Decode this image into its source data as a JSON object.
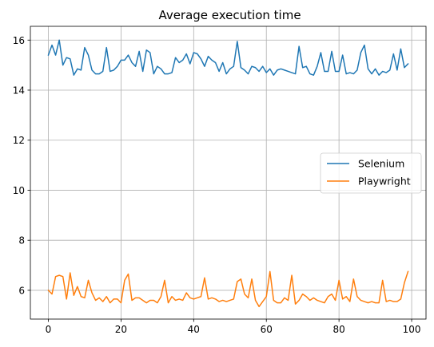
{
  "chart_data": {
    "type": "line",
    "title": "Average execution time",
    "xlabel": "",
    "ylabel": "",
    "xlim": [
      -4.95,
      103.95
    ],
    "ylim": [
      4.85,
      16.55
    ],
    "xticks": [
      0,
      20,
      40,
      60,
      80,
      100
    ],
    "yticks": [
      6,
      8,
      10,
      12,
      14,
      16
    ],
    "grid": true,
    "legend_position": "center-right",
    "x": [
      0,
      1,
      2,
      3,
      4,
      5,
      6,
      7,
      8,
      9,
      10,
      11,
      12,
      13,
      14,
      15,
      16,
      17,
      18,
      19,
      20,
      21,
      22,
      23,
      24,
      25,
      26,
      27,
      28,
      29,
      30,
      31,
      32,
      33,
      34,
      35,
      36,
      37,
      38,
      39,
      40,
      41,
      42,
      43,
      44,
      45,
      46,
      47,
      48,
      49,
      50,
      51,
      52,
      53,
      54,
      55,
      56,
      57,
      58,
      59,
      60,
      61,
      62,
      63,
      64,
      65,
      66,
      67,
      68,
      69,
      70,
      71,
      72,
      73,
      74,
      75,
      76,
      77,
      78,
      79,
      80,
      81,
      82,
      83,
      84,
      85,
      86,
      87,
      88,
      89,
      90,
      91,
      92,
      93,
      94,
      95,
      96,
      97,
      98,
      99
    ],
    "series": [
      {
        "name": "Selenium",
        "color": "#1f77b4",
        "values": [
          15.4,
          15.8,
          15.4,
          16.0,
          15.0,
          15.3,
          15.25,
          14.6,
          14.85,
          14.8,
          15.7,
          15.4,
          14.8,
          14.65,
          14.65,
          14.75,
          15.7,
          14.75,
          14.8,
          14.95,
          15.2,
          15.2,
          15.4,
          15.1,
          14.95,
          15.55,
          14.75,
          15.6,
          15.5,
          14.65,
          14.95,
          14.85,
          14.65,
          14.65,
          14.7,
          15.3,
          15.1,
          15.2,
          15.45,
          15.05,
          15.5,
          15.45,
          15.25,
          14.95,
          15.35,
          15.2,
          15.1,
          14.75,
          15.1,
          14.65,
          14.85,
          14.95,
          15.95,
          14.9,
          14.8,
          14.65,
          14.95,
          14.9,
          14.75,
          14.95,
          14.7,
          14.85,
          14.6,
          14.8,
          14.85,
          14.8,
          14.75,
          14.7,
          14.65,
          15.75,
          14.9,
          14.95,
          14.65,
          14.6,
          14.95,
          15.5,
          14.75,
          14.75,
          15.55,
          14.75,
          14.75,
          15.4,
          14.65,
          14.7,
          14.65,
          14.8,
          15.5,
          15.8,
          14.85,
          14.65,
          14.85,
          14.6,
          14.75,
          14.7,
          14.8,
          15.45,
          14.8,
          15.65,
          14.9,
          15.05
        ]
      },
      {
        "name": "Playwright",
        "color": "#ff7f0e",
        "values": [
          6.0,
          5.85,
          6.55,
          6.6,
          6.55,
          5.65,
          6.7,
          5.8,
          6.15,
          5.75,
          5.7,
          6.4,
          5.9,
          5.6,
          5.7,
          5.55,
          5.75,
          5.5,
          5.65,
          5.65,
          5.5,
          6.4,
          6.65,
          5.6,
          5.7,
          5.7,
          5.6,
          5.5,
          5.6,
          5.6,
          5.5,
          5.75,
          6.4,
          5.5,
          5.75,
          5.6,
          5.65,
          5.6,
          5.9,
          5.7,
          5.65,
          5.7,
          5.75,
          6.5,
          5.65,
          5.7,
          5.65,
          5.55,
          5.6,
          5.55,
          5.6,
          5.65,
          6.35,
          6.45,
          5.85,
          5.7,
          6.45,
          5.6,
          5.35,
          5.55,
          5.75,
          6.75,
          5.6,
          5.5,
          5.5,
          5.7,
          5.6,
          6.6,
          5.45,
          5.6,
          5.85,
          5.75,
          5.6,
          5.7,
          5.6,
          5.55,
          5.5,
          5.75,
          5.85,
          5.6,
          6.4,
          5.65,
          5.75,
          5.55,
          6.45,
          5.75,
          5.6,
          5.55,
          5.5,
          5.55,
          5.5,
          5.5,
          6.4,
          5.55,
          5.6,
          5.55,
          5.55,
          5.65,
          6.3,
          6.75
        ]
      }
    ]
  }
}
